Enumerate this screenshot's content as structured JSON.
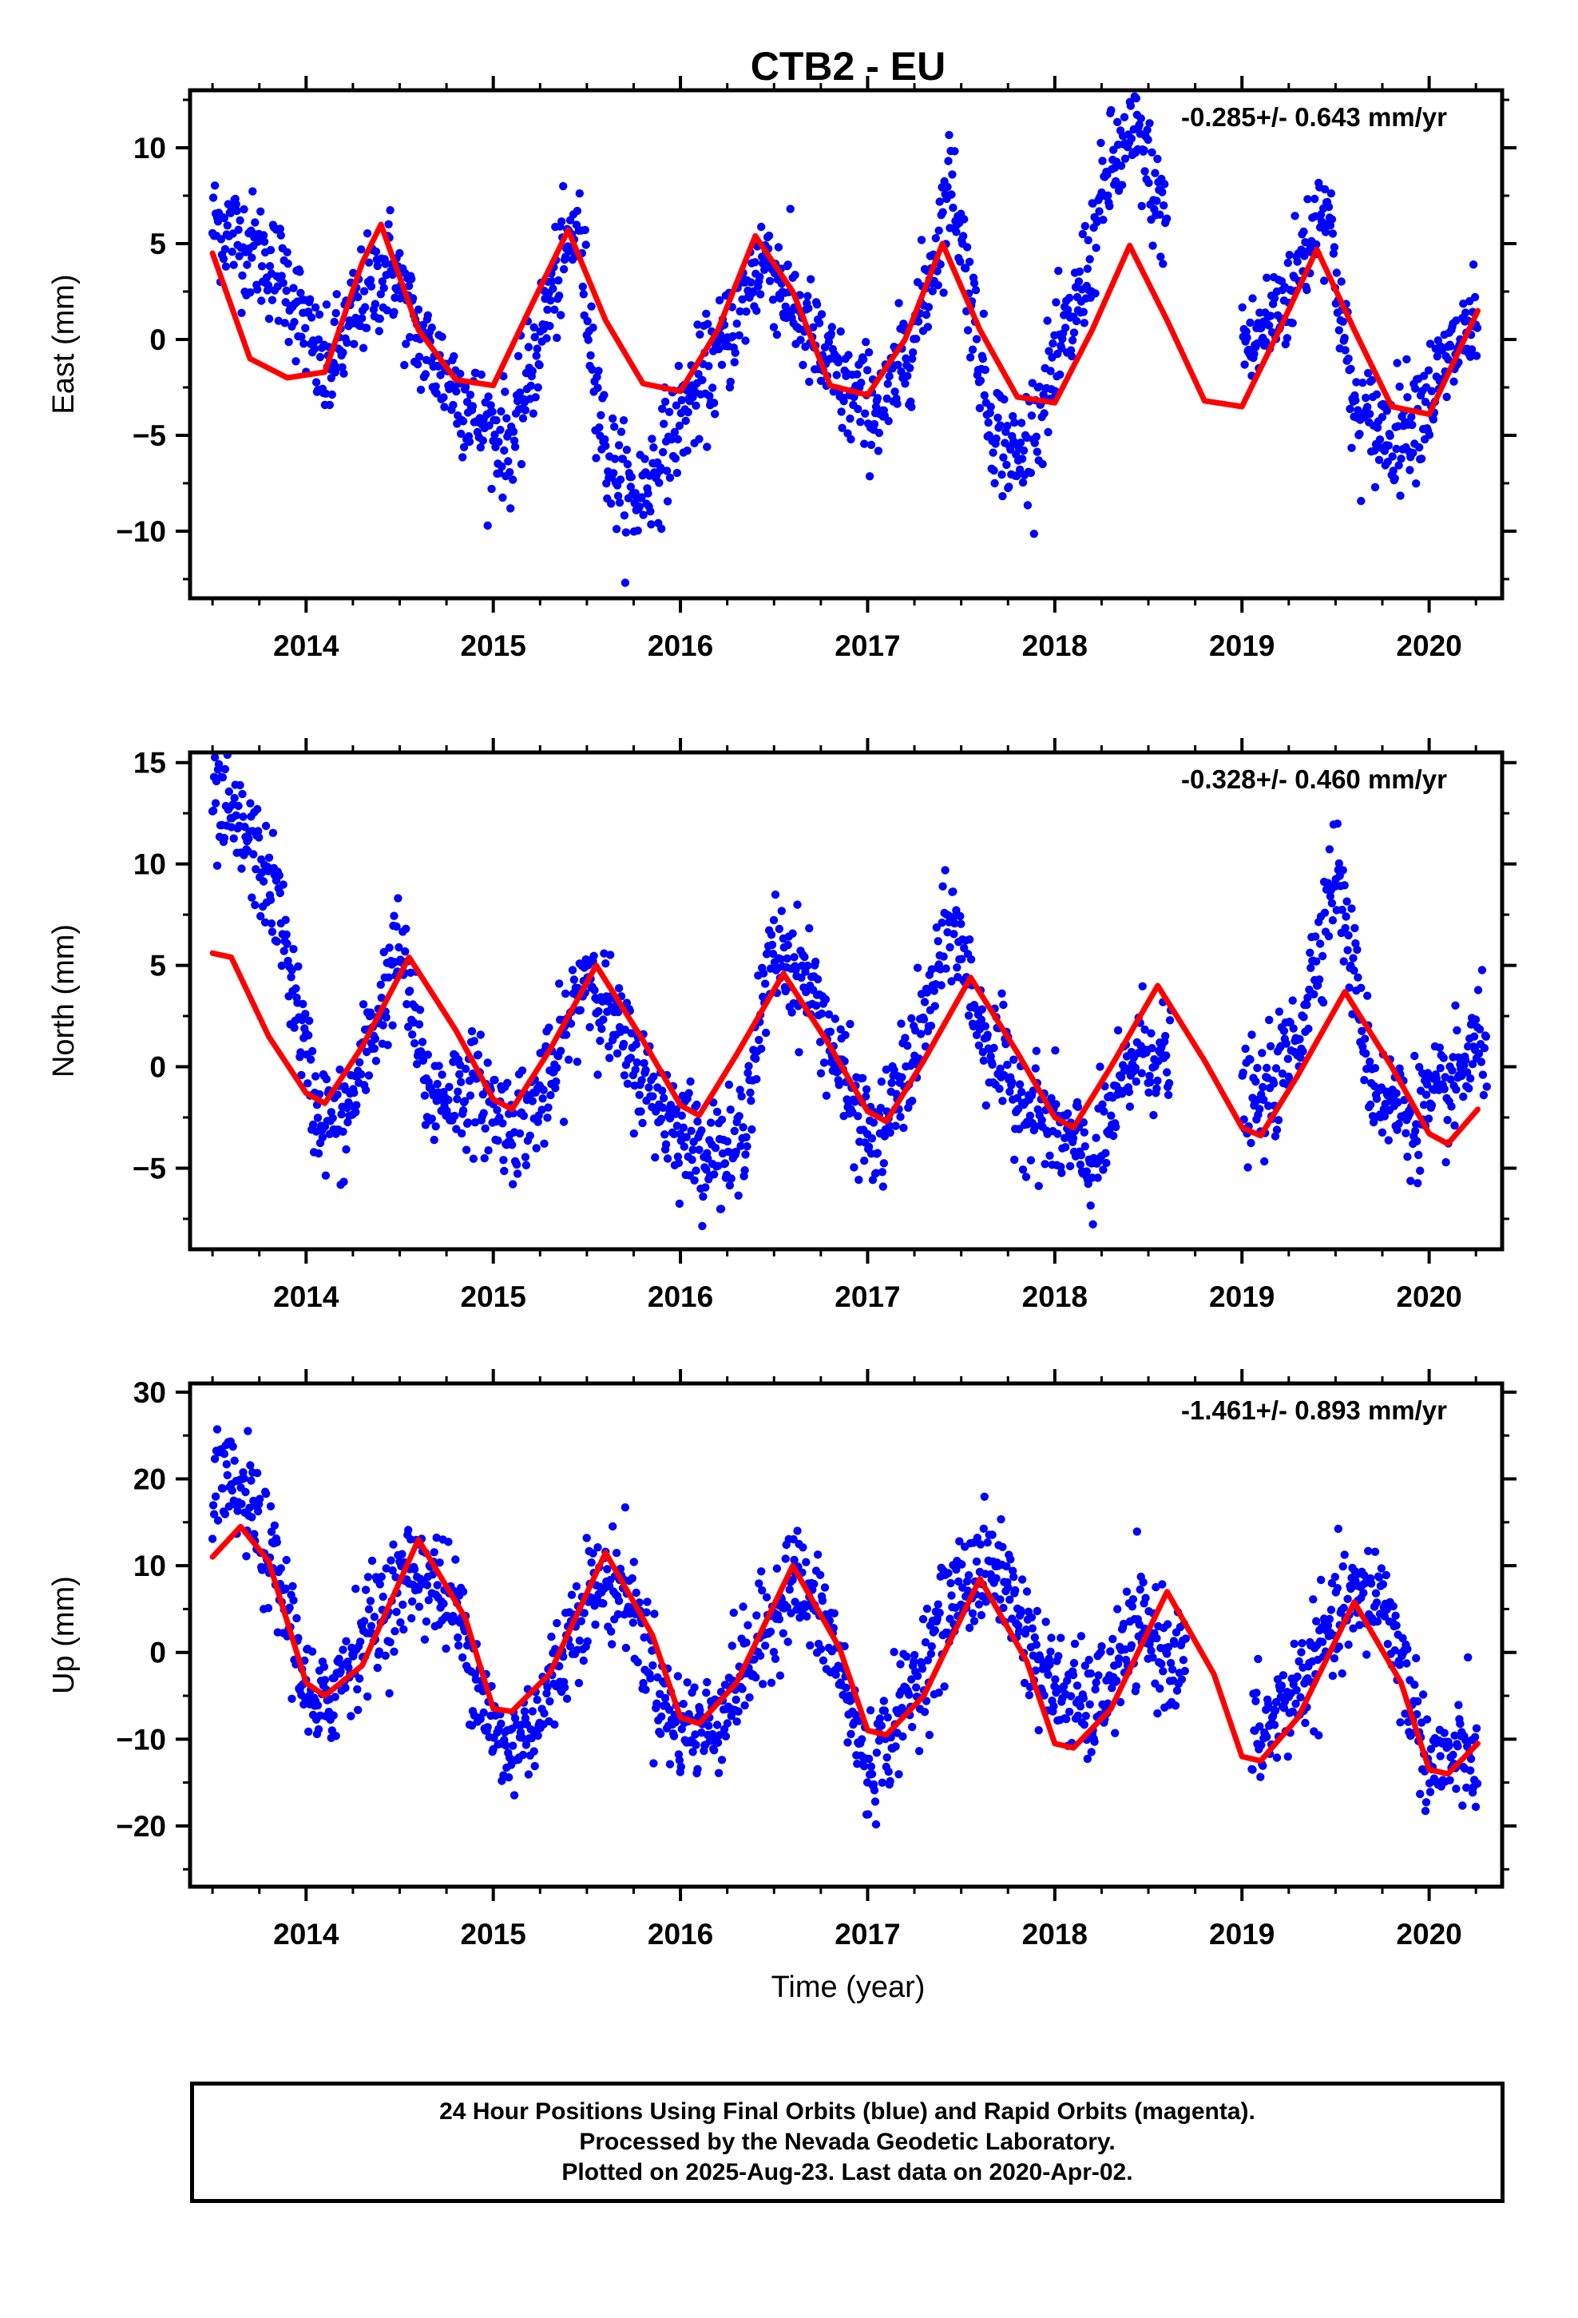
{
  "title": "CTB2 - EU",
  "xlabel": "Time (year)",
  "x_tick_labels": [
    "2014",
    "2015",
    "2016",
    "2017",
    "2018",
    "2019",
    "2020"
  ],
  "colors": {
    "points": "#0000ff",
    "fit": "#ff0000",
    "axis": "#000000"
  },
  "footer": {
    "line1": "24 Hour Positions Using Final Orbits (blue) and Rapid Orbits (magenta).",
    "line2": "Processed by the Nevada Geodetic Laboratory.",
    "line3": "Plotted on 2025-Aug-23. Last data on 2020-Apr-02."
  },
  "chart_data": [
    {
      "type": "scatter",
      "ylabel": "East (mm)",
      "rate_text": "-0.285+/- 0.643 mm/yr",
      "xlim": [
        2013.38,
        2020.39
      ],
      "ylim": [
        -13.5,
        13.0
      ],
      "yticks": [
        -10,
        -5,
        0,
        5,
        10
      ],
      "yticklabels": [
        "−10",
        "−5",
        "0",
        "5",
        "10"
      ],
      "fit_params": {
        "offset": 0.7,
        "trend": -0.285,
        "amp": 4.2,
        "phase": 0.38,
        "x0": 2016.8
      },
      "gaps": [
        [
          2018.6,
          2019.0
        ]
      ],
      "series": [
        {
          "kind": "fit_line",
          "color": "#ff0000",
          "x": [
            2013.5,
            2013.7,
            2013.9,
            2014.1,
            2014.3,
            2014.4,
            2014.6,
            2014.8,
            2015.0,
            2015.2,
            2015.4,
            2015.6,
            2015.8,
            2016.0,
            2016.2,
            2016.4,
            2016.6,
            2016.8,
            2017.0,
            2017.2,
            2017.4,
            2017.6,
            2017.8,
            2018.0,
            2018.2,
            2018.4,
            2018.6,
            2018.8,
            2019.0,
            2019.2,
            2019.4,
            2019.6,
            2019.8,
            2020.0,
            2020.26
          ],
          "y": [
            4.5,
            -1.0,
            -2.0,
            -1.7,
            4.0,
            6.0,
            0.5,
            -2.1,
            -2.4,
            1.7,
            5.7,
            1.0,
            -2.3,
            -2.7,
            0.5,
            5.4,
            2.5,
            -2.4,
            -2.9,
            0.0,
            5.0,
            0.5,
            -3.0,
            -3.3,
            0.5,
            4.9,
            1.0,
            -3.2,
            -3.5,
            0.5,
            4.7,
            0.5,
            -3.5,
            -3.9,
            1.5
          ]
        },
        {
          "kind": "daily_positions",
          "color": "#0000ff",
          "x": [
            2013.55,
            2013.75,
            2013.9,
            2014.1,
            2014.3,
            2014.45,
            2014.6,
            2014.8,
            2014.95,
            2015.1,
            2015.3,
            2015.45,
            2015.6,
            2015.75,
            2015.85,
            2016.0,
            2016.2,
            2016.45,
            2016.7,
            2016.9,
            2017.1,
            2017.3,
            2017.45,
            2017.65,
            2017.8,
            2018.1,
            2018.3,
            2018.45,
            2018.55,
            2019.05,
            2019.25,
            2019.45,
            2019.6,
            2019.8,
            2020.0,
            2020.2
          ],
          "y": [
            6.0,
            4.5,
            3.0,
            -2.0,
            2.0,
            4.0,
            0.0,
            -2.5,
            -4.5,
            -5.5,
            2.0,
            6.0,
            -6.0,
            -8.5,
            -7.0,
            -4.0,
            -1.0,
            4.5,
            0.0,
            -3.0,
            -3.5,
            2.0,
            8.5,
            -4.0,
            -6.5,
            1.0,
            9.0,
            10.5,
            7.0,
            -0.5,
            2.5,
            7.5,
            -4.0,
            -5.0,
            -3.0,
            0.5
          ]
        }
      ]
    },
    {
      "type": "scatter",
      "ylabel": "North (mm)",
      "rate_text": "-0.328+/- 0.460 mm/yr",
      "xlim": [
        2013.38,
        2020.39
      ],
      "ylim": [
        -9.0,
        15.5
      ],
      "yticks": [
        -5,
        0,
        5,
        10,
        15
      ],
      "yticklabels": [
        "−5",
        "0",
        "5",
        "10",
        "15"
      ],
      "fit_params": {
        "offset": 1.0,
        "trend": -0.328,
        "amp": 3.8,
        "phase": 0.28,
        "x0": 2016.8
      },
      "gaps": [
        [
          2018.62,
          2019.0
        ]
      ],
      "series": [
        {
          "kind": "fit_line",
          "color": "#ff0000",
          "x": [
            2013.5,
            2013.6,
            2013.8,
            2014.0,
            2014.1,
            2014.3,
            2014.55,
            2014.8,
            2015.0,
            2015.1,
            2015.3,
            2015.55,
            2015.8,
            2016.0,
            2016.1,
            2016.3,
            2016.55,
            2016.8,
            2017.0,
            2017.1,
            2017.3,
            2017.55,
            2017.8,
            2018.0,
            2018.1,
            2018.3,
            2018.55,
            2018.8,
            2019.0,
            2019.1,
            2019.3,
            2019.55,
            2019.8,
            2020.0,
            2020.1,
            2020.26
          ],
          "y": [
            5.6,
            5.4,
            1.5,
            -1.3,
            -1.8,
            1.0,
            5.4,
            1.8,
            -1.6,
            -2.1,
            0.8,
            5.0,
            1.3,
            -1.9,
            -2.4,
            0.6,
            4.6,
            1.0,
            -2.2,
            -2.7,
            0.3,
            4.4,
            0.7,
            -2.5,
            -3.0,
            0.0,
            4.0,
            0.3,
            -3.0,
            -3.4,
            -0.4,
            3.7,
            0.0,
            -3.3,
            -3.8,
            -2.1
          ]
        },
        {
          "kind": "daily_positions",
          "color": "#0000ff",
          "x": [
            2013.55,
            2013.7,
            2013.85,
            2014.05,
            2014.2,
            2014.5,
            2014.65,
            2014.9,
            2015.1,
            2015.3,
            2015.5,
            2015.7,
            2015.9,
            2016.1,
            2016.3,
            2016.5,
            2016.7,
            2016.9,
            2017.05,
            2017.3,
            2017.45,
            2017.6,
            2017.8,
            2018.05,
            2018.2,
            2018.45,
            2019.1,
            2019.3,
            2019.5,
            2019.7,
            2019.9,
            2020.1,
            2020.25
          ],
          "y": [
            12.5,
            11.0,
            8.0,
            -2.0,
            -3.0,
            6.0,
            -1.5,
            -1.0,
            -3.0,
            -1.0,
            5.0,
            1.0,
            -2.0,
            -4.0,
            -4.5,
            6.0,
            4.0,
            -1.5,
            -4.0,
            2.0,
            7.5,
            2.0,
            -1.5,
            -3.5,
            -5.0,
            1.0,
            -2.0,
            1.5,
            10.0,
            -1.0,
            -2.5,
            -1.5,
            1.0
          ]
        }
      ]
    },
    {
      "type": "scatter",
      "ylabel": "Up (mm)",
      "rate_text": "-1.461+/- 0.893 mm/yr",
      "xlim": [
        2013.38,
        2020.39
      ],
      "ylim": [
        -27.0,
        31.0
      ],
      "yticks": [
        -20,
        -10,
        0,
        10,
        20,
        30
      ],
      "yticklabels": [
        "−20",
        "−10",
        "0",
        "10",
        "20",
        "30"
      ],
      "fit_params": {
        "offset": 4.0,
        "trend": -1.461,
        "amp": 10.0,
        "phase": 0.4,
        "x0": 2016.8
      },
      "gaps": [
        [
          2018.7,
          2019.05
        ]
      ],
      "series": [
        {
          "kind": "fit_line",
          "color": "#ff0000",
          "x": [
            2013.5,
            2013.65,
            2013.8,
            2014.0,
            2014.1,
            2014.3,
            2014.6,
            2014.85,
            2015.0,
            2015.1,
            2015.3,
            2015.6,
            2015.85,
            2016.0,
            2016.1,
            2016.3,
            2016.6,
            2016.85,
            2017.0,
            2017.1,
            2017.3,
            2017.6,
            2017.85,
            2018.0,
            2018.1,
            2018.3,
            2018.6,
            2018.85,
            2019.0,
            2019.1,
            2019.3,
            2019.6,
            2019.85,
            2020.0,
            2020.1,
            2020.26
          ],
          "y": [
            11.0,
            14.5,
            10.5,
            -3.5,
            -5.0,
            -1.5,
            13.0,
            4.0,
            -6.5,
            -6.8,
            -2.5,
            11.5,
            2.0,
            -7.5,
            -8.2,
            -3.5,
            10.0,
            0.5,
            -9.0,
            -9.5,
            -5.0,
            8.5,
            -1.0,
            -10.5,
            -11.0,
            -6.5,
            7.0,
            -2.5,
            -12.0,
            -12.5,
            -7.5,
            5.8,
            -3.5,
            -13.5,
            -14.0,
            -10.5
          ]
        },
        {
          "kind": "daily_positions",
          "color": "#0000ff",
          "x": [
            2013.55,
            2013.7,
            2013.9,
            2014.05,
            2014.3,
            2014.6,
            2014.8,
            2015.05,
            2015.25,
            2015.5,
            2015.7,
            2015.95,
            2016.15,
            2016.4,
            2016.6,
            2016.8,
            2017.0,
            2017.2,
            2017.5,
            2017.7,
            2017.95,
            2018.2,
            2018.45,
            2019.1,
            2019.3,
            2019.55,
            2019.75,
            2020.0,
            2020.2
          ],
          "y": [
            19.0,
            17.0,
            5.0,
            -8.0,
            2.0,
            10.0,
            5.0,
            -12.0,
            -7.0,
            7.0,
            8.0,
            -8.0,
            -9.0,
            0.0,
            9.0,
            2.0,
            -14.0,
            -6.0,
            8.0,
            10.0,
            -3.0,
            -7.0,
            3.0,
            -10.0,
            -4.0,
            5.0,
            7.0,
            -13.0,
            -12.0
          ]
        }
      ]
    }
  ]
}
